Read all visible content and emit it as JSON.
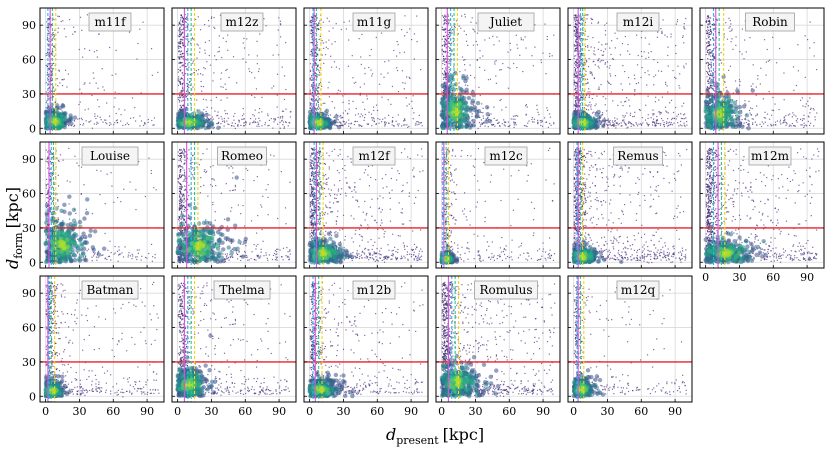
{
  "chart_data": {
    "type": "scatter",
    "description_axes": {
      "xlabel": "d",
      "xlabel_sub": "present",
      "xlabel_unit": "[kpc]",
      "ylabel": "d",
      "ylabel_sub": "form",
      "ylabel_unit": "[kpc]"
    },
    "xlim": [
      -5,
      105
    ],
    "ylim": [
      -5,
      105
    ],
    "x_ticks": [
      "0",
      "30",
      "60",
      "90"
    ],
    "y_ticks": [
      "0",
      "30",
      "60",
      "90"
    ],
    "x_tick_values": [
      0,
      30,
      60,
      90
    ],
    "y_tick_values": [
      0,
      30,
      60,
      90
    ],
    "grid": true,
    "reference_line": {
      "axis": "y",
      "value": 30,
      "color": "#e8202a"
    },
    "vline_colors": [
      "#e14de3",
      "#2fb4e8",
      "#2fc98a",
      "#f2d41a"
    ],
    "panels": [
      {
        "name": "m11f",
        "vlines": [
          4,
          2,
          6,
          9
        ],
        "core": [
          8,
          6
        ],
        "spread": "low"
      },
      {
        "name": "m12z",
        "vlines": [
          6,
          9,
          12,
          15
        ],
        "core": [
          10,
          5
        ],
        "spread": "mid"
      },
      {
        "name": "m11g",
        "vlines": [
          4,
          3,
          6,
          10
        ],
        "core": [
          7,
          5
        ],
        "spread": "mid"
      },
      {
        "name": "Juliet",
        "vlines": [
          5,
          8,
          11,
          14
        ],
        "core": [
          12,
          15
        ],
        "spread": "mid"
      },
      {
        "name": "m12i",
        "vlines": [
          4,
          6,
          8,
          10
        ],
        "core": [
          8,
          5
        ],
        "spread": "high"
      },
      {
        "name": "Robin",
        "vlines": [
          9,
          7,
          12,
          16
        ],
        "core": [
          12,
          12
        ],
        "spread": "mid"
      },
      {
        "name": "Louise",
        "vlines": [
          3,
          5,
          7,
          9
        ],
        "core": [
          15,
          16
        ],
        "spread": "low"
      },
      {
        "name": "Romeo",
        "vlines": [
          8,
          12,
          15,
          18
        ],
        "core": [
          18,
          14
        ],
        "spread": "mid"
      },
      {
        "name": "m12f",
        "vlines": [
          6,
          4,
          9,
          12
        ],
        "core": [
          12,
          8
        ],
        "spread": "high"
      },
      {
        "name": "m12c",
        "vlines": [
          2,
          1,
          4,
          6
        ],
        "core": [
          4,
          3
        ],
        "spread": "low"
      },
      {
        "name": "Remus",
        "vlines": [
          4,
          3,
          6,
          8
        ],
        "core": [
          8,
          5
        ],
        "spread": "high"
      },
      {
        "name": "m12m",
        "vlines": [
          11,
          7,
          14,
          17
        ],
        "core": [
          18,
          8
        ],
        "spread": "high"
      },
      {
        "name": "Batman",
        "vlines": [
          2,
          3,
          5,
          8
        ],
        "core": [
          6,
          5
        ],
        "spread": "mid"
      },
      {
        "name": "Thelma",
        "vlines": [
          6,
          9,
          12,
          15
        ],
        "core": [
          10,
          10
        ],
        "spread": "mid"
      },
      {
        "name": "m12b",
        "vlines": [
          5,
          3,
          8,
          11
        ],
        "core": [
          10,
          6
        ],
        "spread": "mid"
      },
      {
        "name": "Romulus",
        "vlines": [
          6,
          9,
          12,
          15
        ],
        "core": [
          14,
          12
        ],
        "spread": "high"
      },
      {
        "name": "m12q",
        "vlines": [
          4,
          3,
          6,
          9
        ],
        "core": [
          7,
          6
        ],
        "spread": "low"
      }
    ]
  }
}
